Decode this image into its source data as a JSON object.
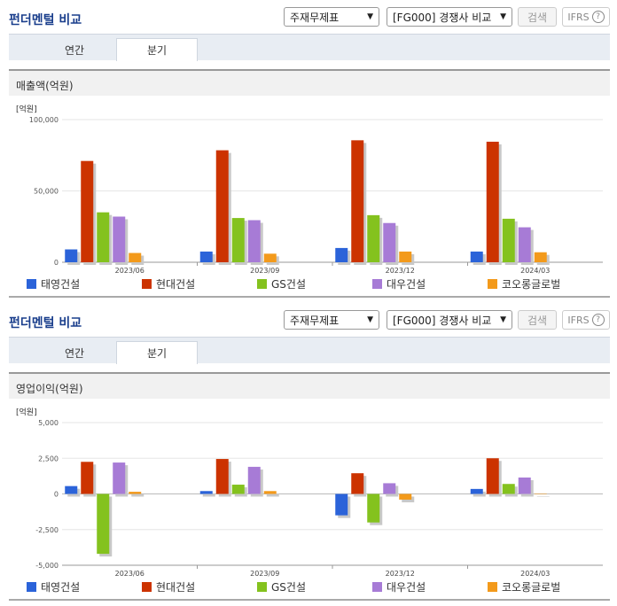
{
  "sections": [
    {
      "title": "펀더멘털 비교",
      "select1": "주재무제표",
      "select2": "[FG000] 경쟁사 비교",
      "search_label": "검색",
      "ifrs_label": "IFRS",
      "help_icon": "?",
      "tabs": [
        "연간",
        "분기"
      ],
      "active_tab": 1,
      "subheader": "매출액(억원)",
      "chart_data": {
        "type": "bar",
        "unit_label": "[억원]",
        "categories": [
          "2023/06",
          "2023/09",
          "2023/12",
          "2024/03"
        ],
        "ylim": [
          0,
          100000
        ],
        "yticks": [
          0,
          50000,
          100000
        ],
        "ytick_labels": [
          "0",
          "50,000",
          "100,000"
        ],
        "series": [
          {
            "name": "태영건설",
            "color": "#2b63d9",
            "values": [
              9000,
              7500,
              10000,
              7500
            ]
          },
          {
            "name": "현대건설",
            "color": "#cc3300",
            "values": [
              71000,
              78500,
              85500,
              84500
            ]
          },
          {
            "name": "GS건설",
            "color": "#84c21e",
            "values": [
              35000,
              31000,
              33000,
              30500
            ]
          },
          {
            "name": "대우건설",
            "color": "#a77bd6",
            "values": [
              32000,
              29500,
              27500,
              24500
            ]
          },
          {
            "name": "코오롱글로벌",
            "color": "#f39a1b",
            "values": [
              6500,
              6000,
              7500,
              7000
            ]
          }
        ]
      }
    },
    {
      "title": "펀더멘털 비교",
      "select1": "주재무제표",
      "select2": "[FG000] 경쟁사 비교",
      "search_label": "검색",
      "ifrs_label": "IFRS",
      "help_icon": "?",
      "tabs": [
        "연간",
        "분기"
      ],
      "active_tab": 1,
      "subheader": "영업이익(억원)",
      "chart_data": {
        "type": "bar",
        "unit_label": "[억원]",
        "categories": [
          "2023/06",
          "2023/09",
          "2023/12",
          "2024/03"
        ],
        "ylim": [
          -5000,
          5000
        ],
        "yticks": [
          -5000,
          -2500,
          0,
          2500,
          5000
        ],
        "ytick_labels": [
          "-5,000",
          "-2,500",
          "0",
          "2,500",
          "5,000"
        ],
        "series": [
          {
            "name": "태영건설",
            "color": "#2b63d9",
            "values": [
              550,
              200,
              -1500,
              350
            ]
          },
          {
            "name": "현대건설",
            "color": "#cc3300",
            "values": [
              2250,
              2450,
              1450,
              2500
            ]
          },
          {
            "name": "GS건설",
            "color": "#84c21e",
            "values": [
              -4200,
              650,
              -2000,
              700
            ]
          },
          {
            "name": "대우건설",
            "color": "#a77bd6",
            "values": [
              2200,
              1900,
              750,
              1150
            ]
          },
          {
            "name": "코오롱글로벌",
            "color": "#f39a1b",
            "values": [
              150,
              200,
              -400,
              0
            ]
          }
        ]
      }
    }
  ]
}
